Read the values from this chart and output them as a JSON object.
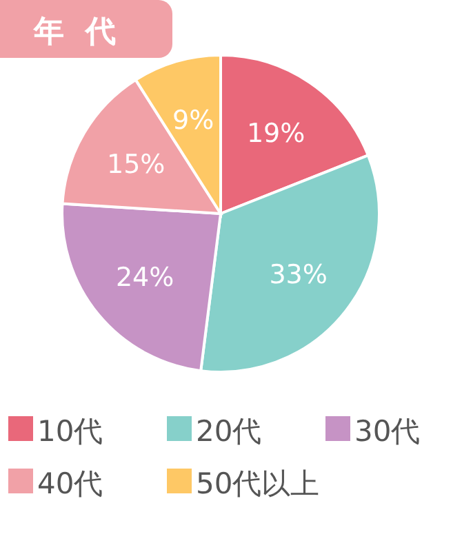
{
  "chart_data": {
    "type": "pie",
    "title": "年代",
    "categories": [
      "10代",
      "20代",
      "30代",
      "40代",
      "50代以上"
    ],
    "values": [
      19,
      33,
      24,
      15,
      9
    ],
    "colors": [
      "#e9687a",
      "#86d0ca",
      "#c693c5",
      "#f1a1a7",
      "#fec865"
    ],
    "value_labels": [
      "19%",
      "33%",
      "24%",
      "15%",
      "9%"
    ],
    "legend": "bottom"
  }
}
